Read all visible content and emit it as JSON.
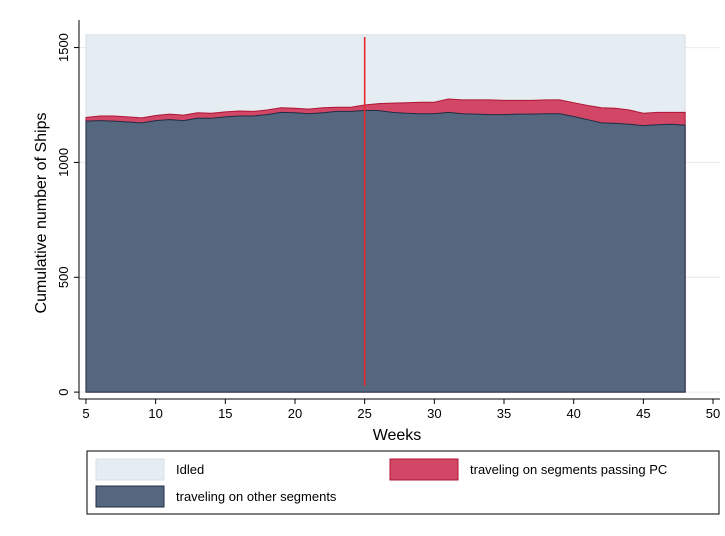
{
  "chart_data": {
    "type": "area",
    "title": "",
    "xlabel": "Weeks",
    "ylabel": "Cumulative number of Ships",
    "xlim": [
      4.5,
      50.5
    ],
    "ylim": [
      -30,
      1620
    ],
    "xticks": [
      5,
      10,
      15,
      20,
      25,
      30,
      35,
      40,
      45,
      50
    ],
    "yticks": [
      0,
      500,
      1000,
      1500
    ],
    "grid": true,
    "reference_line": {
      "x": 25,
      "color": "#e8262b"
    },
    "x": [
      5,
      6,
      7,
      8,
      9,
      10,
      11,
      12,
      13,
      14,
      15,
      16,
      17,
      18,
      19,
      20,
      21,
      22,
      23,
      24,
      25,
      26,
      27,
      28,
      29,
      30,
      31,
      32,
      33,
      34,
      35,
      36,
      37,
      38,
      39,
      40,
      41,
      42,
      43,
      44,
      45,
      46,
      47,
      48
    ],
    "series": [
      {
        "name": "traveling on other segments",
        "color": "#55677f",
        "stroke": "#1f2e44",
        "values": [
          1180,
          1182,
          1180,
          1176,
          1172,
          1182,
          1186,
          1182,
          1192,
          1192,
          1198,
          1202,
          1202,
          1208,
          1218,
          1216,
          1212,
          1216,
          1222,
          1222,
          1226,
          1226,
          1218,
          1214,
          1212,
          1212,
          1218,
          1212,
          1210,
          1208,
          1208,
          1210,
          1210,
          1212,
          1212,
          1200,
          1186,
          1172,
          1170,
          1166,
          1160,
          1164,
          1166,
          1162
        ]
      },
      {
        "name": "traveling on segments passing PC",
        "color": "#d24766",
        "stroke": "#b01535",
        "values": [
          1196,
          1202,
          1202,
          1198,
          1194,
          1204,
          1210,
          1206,
          1216,
          1214,
          1220,
          1224,
          1222,
          1228,
          1238,
          1236,
          1232,
          1238,
          1240,
          1240,
          1250,
          1256,
          1258,
          1260,
          1262,
          1262,
          1276,
          1272,
          1272,
          1272,
          1270,
          1270,
          1270,
          1272,
          1272,
          1260,
          1248,
          1238,
          1236,
          1228,
          1214,
          1218,
          1218,
          1218
        ]
      },
      {
        "name": "Idled",
        "color": "#e5edf2",
        "stroke": "#d6e0e7",
        "values": [
          1555,
          1555,
          1555,
          1555,
          1555,
          1555,
          1555,
          1555,
          1555,
          1555,
          1555,
          1555,
          1555,
          1555,
          1555,
          1555,
          1555,
          1555,
          1555,
          1555,
          1555,
          1555,
          1555,
          1555,
          1555,
          1555,
          1555,
          1555,
          1555,
          1555,
          1555,
          1555,
          1555,
          1555,
          1555,
          1555,
          1555,
          1555,
          1555,
          1555,
          1555,
          1555,
          1555,
          1555
        ]
      }
    ],
    "legend": {
      "placement": "bottom",
      "items": [
        {
          "label": "Idled",
          "color": "#e5edf2",
          "stroke": "#d6e0e7"
        },
        {
          "label": "traveling on segments passing PC",
          "color": "#d24766",
          "stroke": "#b01535"
        },
        {
          "label": "traveling on other segments",
          "color": "#55677f",
          "stroke": "#1f2e44"
        }
      ]
    }
  }
}
